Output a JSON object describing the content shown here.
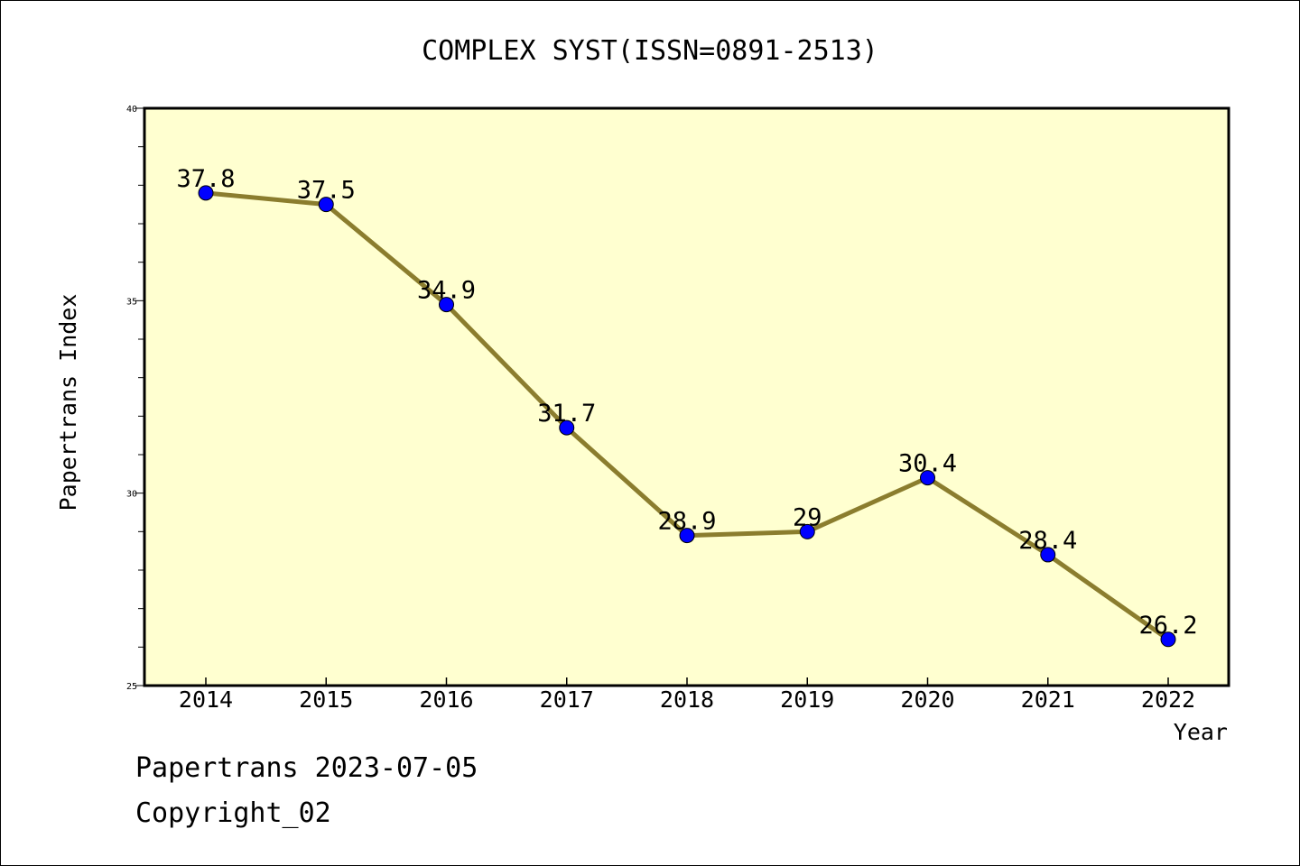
{
  "chart_data": {
    "type": "line",
    "title": "COMPLEX SYST(ISSN=0891-2513)",
    "xlabel": "Year",
    "ylabel": "Papertrans Index",
    "x": [
      "2014",
      "2015",
      "2016",
      "2017",
      "2018",
      "2019",
      "2020",
      "2021",
      "2022"
    ],
    "series": [
      {
        "values": [
          37.8,
          37.5,
          34.9,
          31.7,
          28.9,
          29,
          30.4,
          28.4,
          26.2
        ],
        "labels": [
          "37.8",
          "37.5",
          "34.9",
          "31.7",
          "28.9",
          "29",
          "30.4",
          "28.4",
          "26.2"
        ]
      }
    ],
    "ylim": [
      25,
      40
    ],
    "yticks": [
      "25",
      "30",
      "35",
      "40"
    ],
    "grid": false,
    "colors": {
      "plot_background": "#ffffd0",
      "line": "#8b7d2e",
      "marker": "#0000ff"
    }
  },
  "footer": {
    "line1": "Papertrans 2023-07-05",
    "line2": "Copyright_02"
  }
}
